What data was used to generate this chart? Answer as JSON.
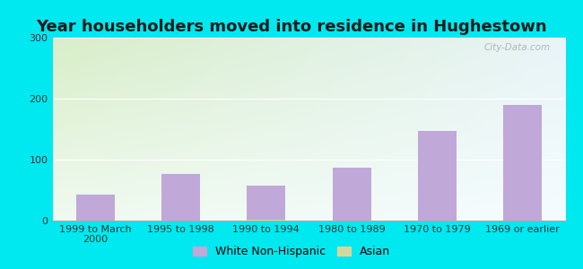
{
  "title": "Year householders moved into residence in Hughestown",
  "categories": [
    "1999 to March\n2000",
    "1995 to 1998",
    "1990 to 1994",
    "1980 to 1989",
    "1970 to 1979",
    "1969 or earlier"
  ],
  "white_non_hispanic": [
    42,
    76,
    58,
    87,
    147,
    190
  ],
  "asian": [
    0,
    0,
    2,
    0,
    0,
    0
  ],
  "bar_color_white": "#c0a8d8",
  "bar_color_asian": "#d4d89a",
  "background_outer": "#00e8f0",
  "background_inner_topleft": "#d8eec8",
  "background_inner_topright": "#e8f4f8",
  "background_inner_bottomleft": "#e8f4e0",
  "background_inner_bottomright": "#f0f8ff",
  "grid_color": "#cccccc",
  "ylim": [
    0,
    300
  ],
  "yticks": [
    0,
    100,
    200,
    300
  ],
  "title_fontsize": 13,
  "tick_fontsize": 8,
  "legend_fontsize": 9,
  "watermark": "City-Data.com",
  "bar_width": 0.45
}
